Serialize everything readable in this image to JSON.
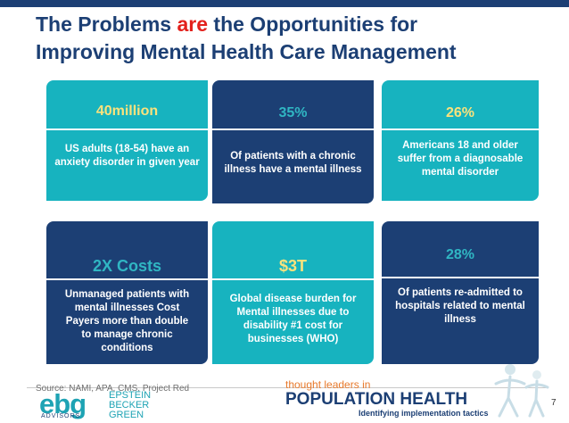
{
  "title": {
    "line1_pre": "The Problems ",
    "line1_highlight": "are",
    "line1_post": " the Opportunities for",
    "line2": "Improving Mental Health Care Management"
  },
  "tiles": [
    {
      "stat": "40million",
      "description": "US adults (18-54) have an anxiety disorder in given year"
    },
    {
      "stat": "35%",
      "description": "Of patients with a chronic illness have a mental illness"
    },
    {
      "stat": "26%",
      "description": "Americans 18 and older suffer from a diagnosable mental disorder"
    },
    {
      "stat": "2X Costs",
      "description": "Unmanaged patients with mental illnesses Cost Payers more than double to manage chronic conditions"
    },
    {
      "stat": "$3T",
      "description": "Global disease burden for Mental illnesses due to disability #1 cost for businesses (WHO)"
    },
    {
      "stat": "28%",
      "description": "Of patients re-admitted to hospitals related to mental illness"
    }
  ],
  "footer": {
    "source": "Source: NAMI, APA, CMS, Project Red",
    "logo_mark": "ebg",
    "logo_advisors": "ADVISORS",
    "logo_names": [
      "EPSTEIN",
      "BECKER",
      "GREEN"
    ],
    "tagline_a": "thought leaders in",
    "tagline_b": "POPULATION HEALTH",
    "tagline_c": "Identifying implementation tactics",
    "page_number": "7"
  },
  "colors": {
    "navy": "#1c3f74",
    "teal": "#17b3bf",
    "highlight_red": "#e3211c",
    "stat_yellow": "#fbe27c",
    "stat_cyan": "#30b6c3",
    "tagline_orange": "#e87a2c"
  }
}
